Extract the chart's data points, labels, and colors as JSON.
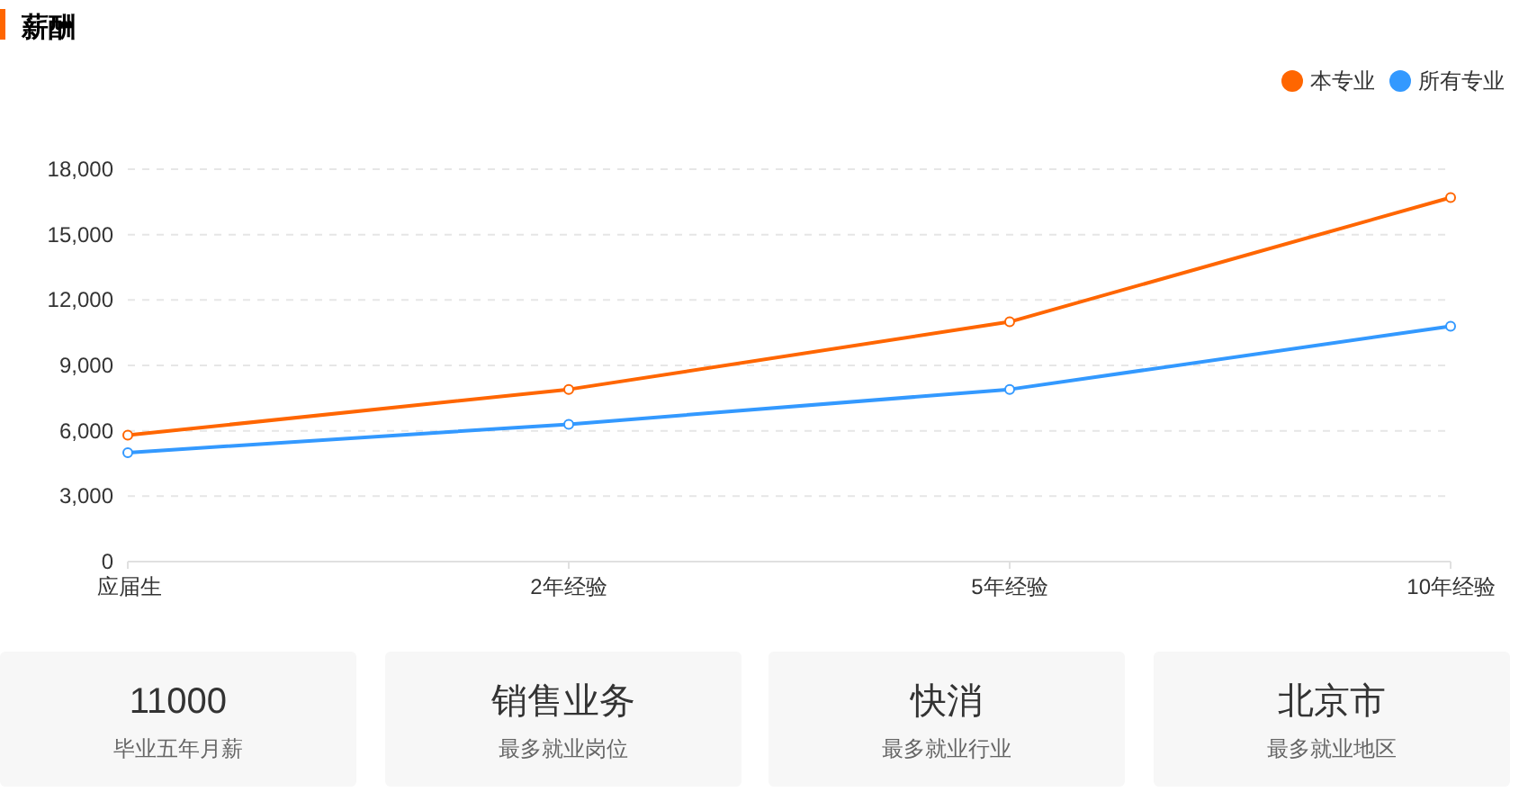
{
  "chart_data": [
    {
      "type": "line",
      "title": "薪酬",
      "categories": [
        "应届生",
        "2年经验",
        "5年经验",
        "10年经验"
      ],
      "series": [
        {
          "name": "本专业",
          "color": "#ff6600",
          "values": [
            5800,
            7900,
            11000,
            16700
          ]
        },
        {
          "name": "所有专业",
          "color": "#3399ff",
          "values": [
            5000,
            6300,
            7900,
            10800
          ]
        }
      ],
      "ylim": [
        0,
        18000
      ],
      "yticks": [
        0,
        {
          "value": 3000,
          "label": "3,000"
        },
        {
          "value": 6000,
          "label": "6,000"
        },
        {
          "value": 9000,
          "label": "9,000"
        },
        {
          "value": 12000,
          "label": "12,000"
        },
        {
          "value": 15000,
          "label": "15,000"
        },
        {
          "value": 18000,
          "label": "18,000"
        }
      ],
      "grid": "y",
      "legend": "top right",
      "marker": "circle",
      "line_style": "solid"
    },
    {
      "type": "other",
      "annotations": [
        "11000",
        "毕业五年月薪",
        "销售业务",
        "最多就业岗位",
        "快消",
        "最多就业行业",
        "北京市",
        "最多就业地区"
      ]
    }
  ]
}
